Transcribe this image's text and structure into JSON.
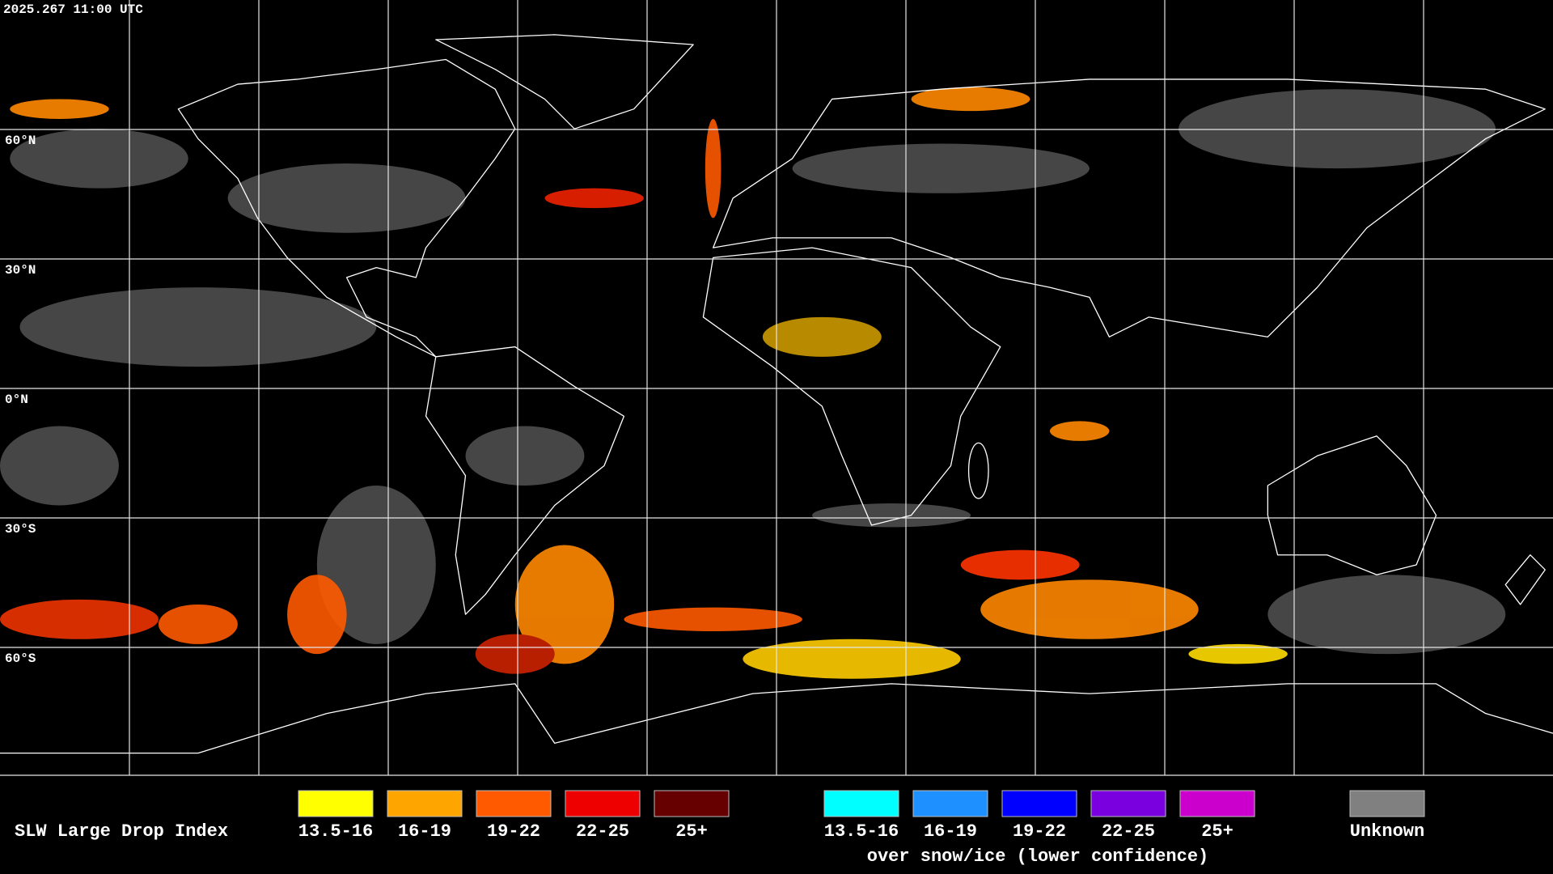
{
  "timestamp": "2025.267 11:00 UTC",
  "latitude_labels": [
    "60°N",
    "30°N",
    "0°N",
    "30°S",
    "60°S"
  ],
  "legend": {
    "title": "SLW Large Drop Index",
    "standard": [
      {
        "label": "13.5-16",
        "color": "#ffff00"
      },
      {
        "label": "16-19",
        "color": "#ffa500"
      },
      {
        "label": "19-22",
        "color": "#ff5a00"
      },
      {
        "label": "22-25",
        "color": "#ee0000"
      },
      {
        "label": "25+",
        "color": "#660000"
      }
    ],
    "snow_ice": [
      {
        "label": "13.5-16",
        "color": "#00ffff"
      },
      {
        "label": "16-19",
        "color": "#1e90ff"
      },
      {
        "label": "19-22",
        "color": "#0000ff"
      },
      {
        "label": "22-25",
        "color": "#7a00e0"
      },
      {
        "label": "25+",
        "color": "#cc00cc"
      }
    ],
    "snow_ice_note": "over snow/ice (lower confidence)",
    "unknown": {
      "label": "Unknown",
      "color": "#808080"
    }
  }
}
